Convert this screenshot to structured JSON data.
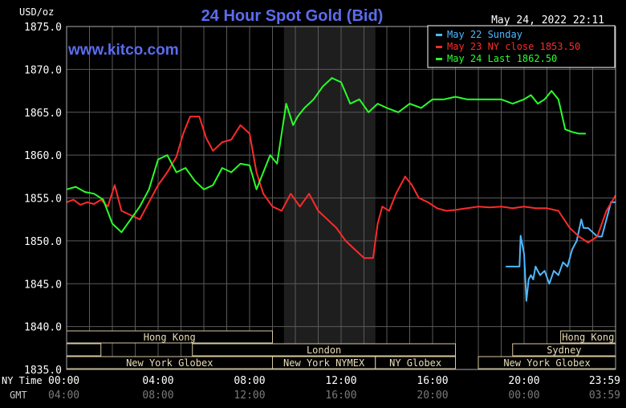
{
  "chart_data": {
    "type": "line",
    "title": "24 Hour Spot Gold (Bid)",
    "ylabel": "USD/oz",
    "timestamp": "May 24, 2022 22:11",
    "watermark": "www.kitco.com",
    "ylim": [
      1835,
      1875
    ],
    "y_ticks": [
      "1875.0",
      "1870.0",
      "1865.0",
      "1860.0",
      "1855.0",
      "1850.0",
      "1845.0",
      "1840.0",
      "1835.0"
    ],
    "xlim": [
      0,
      24
    ],
    "x_ticks_ny": [
      "00:00",
      "04:00",
      "08:00",
      "12:00",
      "16:00",
      "20:00",
      "23:59"
    ],
    "x_ticks_gmt": [
      "04:00",
      "08:00",
      "12:00",
      "16:00",
      "20:00",
      "00:00",
      "03:59"
    ],
    "x_axis_labels": {
      "ny": "NY Time",
      "gmt": "GMT"
    },
    "grid": true,
    "legend_position": "top-right",
    "legend": [
      {
        "label": "May 22 Sunday",
        "color": "#4fb8ff"
      },
      {
        "label": "May 23 NY close 1853.50",
        "color": "#ff2a2a"
      },
      {
        "label": "May 24 Last 1862.50",
        "color": "#29ff29"
      }
    ],
    "shaded_region_hours": [
      9.5,
      13.5
    ],
    "series": [
      {
        "name": "May 22 Sunday",
        "color": "#4fb8ff",
        "x": [
          19.2,
          19.8,
          19.85,
          20.0,
          20.1,
          20.2,
          20.3,
          20.4,
          20.5,
          20.7,
          20.9,
          21.1,
          21.3,
          21.5,
          21.7,
          21.9,
          22.1,
          22.3,
          22.5,
          22.6,
          22.8,
          23.0,
          23.2,
          23.4,
          23.6,
          23.8,
          24.0
        ],
        "y": [
          1847.0,
          1847.0,
          1850.6,
          1848.5,
          1843.0,
          1845.5,
          1846.0,
          1845.5,
          1847.0,
          1846.0,
          1846.5,
          1845.0,
          1846.5,
          1846.0,
          1847.5,
          1847.0,
          1849.0,
          1850.0,
          1852.5,
          1851.5,
          1851.5,
          1851.0,
          1850.5,
          1850.5,
          1852.5,
          1854.5,
          1854.5
        ]
      },
      {
        "name": "May 23 NY close 1853.50",
        "color": "#ff2a2a",
        "x": [
          0,
          0.3,
          0.6,
          0.9,
          1.2,
          1.5,
          1.8,
          2.1,
          2.4,
          2.8,
          3.2,
          3.6,
          4.0,
          4.4,
          4.8,
          5.1,
          5.4,
          5.8,
          6.1,
          6.4,
          6.8,
          7.2,
          7.6,
          8.0,
          8.3,
          8.6,
          9.0,
          9.4,
          9.8,
          10.2,
          10.6,
          11.0,
          11.4,
          11.8,
          12.2,
          12.6,
          13.0,
          13.4,
          13.6,
          13.8,
          14.1,
          14.4,
          14.8,
          15.1,
          15.4,
          15.8,
          16.2,
          16.6,
          17.0,
          17.5,
          18.0,
          18.5,
          19.0,
          19.5,
          20.0,
          20.5,
          21.0,
          21.5,
          22.0,
          22.4,
          22.8,
          23.2,
          23.6,
          24.0
        ],
        "y": [
          1854.5,
          1854.8,
          1854.2,
          1854.5,
          1854.3,
          1854.8,
          1854.0,
          1856.5,
          1853.5,
          1853.0,
          1852.5,
          1854.5,
          1856.5,
          1858.0,
          1859.8,
          1862.5,
          1864.5,
          1864.5,
          1862.0,
          1860.5,
          1861.5,
          1861.8,
          1863.5,
          1862.5,
          1858.0,
          1855.5,
          1854.0,
          1853.5,
          1855.5,
          1854.0,
          1855.5,
          1853.5,
          1852.5,
          1851.5,
          1850.0,
          1849.0,
          1848.0,
          1848.0,
          1852.0,
          1854.0,
          1853.5,
          1855.5,
          1857.5,
          1856.5,
          1855.0,
          1854.5,
          1853.8,
          1853.5,
          1853.6,
          1853.8,
          1854.0,
          1853.9,
          1854.0,
          1853.8,
          1854.0,
          1853.8,
          1853.8,
          1853.5,
          1851.5,
          1850.5,
          1849.8,
          1850.5,
          1853.5,
          1855.3
        ]
      },
      {
        "name": "May 24 Last 1862.50",
        "color": "#29ff29",
        "x": [
          0,
          0.4,
          0.8,
          1.2,
          1.6,
          2.0,
          2.4,
          2.8,
          3.2,
          3.6,
          4.0,
          4.4,
          4.8,
          5.2,
          5.6,
          6.0,
          6.4,
          6.8,
          7.2,
          7.6,
          8.0,
          8.3,
          8.6,
          8.9,
          9.2,
          9.6,
          9.9,
          10.1,
          10.4,
          10.8,
          11.2,
          11.6,
          12.0,
          12.4,
          12.8,
          13.2,
          13.6,
          14.0,
          14.5,
          15.0,
          15.5,
          16.0,
          16.5,
          17.0,
          17.5,
          18.0,
          18.5,
          19.0,
          19.5,
          20.0,
          20.3,
          20.6,
          20.9,
          21.2,
          21.5,
          21.8,
          22.1,
          22.4,
          22.7
        ],
        "y": [
          1856.0,
          1856.3,
          1855.7,
          1855.5,
          1854.8,
          1852.0,
          1851.0,
          1852.5,
          1854.0,
          1856.0,
          1859.5,
          1860.0,
          1858.0,
          1858.5,
          1857.0,
          1856.0,
          1856.5,
          1858.5,
          1858.0,
          1859.0,
          1858.8,
          1856.0,
          1858.0,
          1860.0,
          1859.0,
          1866.0,
          1863.5,
          1864.5,
          1865.5,
          1866.5,
          1868.0,
          1869.0,
          1868.5,
          1866.0,
          1866.5,
          1865.0,
          1866.0,
          1865.5,
          1865.0,
          1866.0,
          1865.5,
          1866.5,
          1866.5,
          1866.8,
          1866.5,
          1866.5,
          1866.5,
          1866.5,
          1866.0,
          1866.5,
          1867.0,
          1866.0,
          1866.5,
          1867.5,
          1866.5,
          1863.0,
          1862.7,
          1862.5,
          1862.5
        ]
      }
    ],
    "sessions": [
      {
        "label": "Hong Kong",
        "row": 0,
        "start": 0.0,
        "end": 9.0
      },
      {
        "label": "Hong Kong",
        "row": 0,
        "start": 21.6,
        "end": 24.0
      },
      {
        "label": "",
        "row": 1,
        "start": 0.0,
        "end": 1.5
      },
      {
        "label": "London",
        "row": 1,
        "start": 5.5,
        "end": 17.0
      },
      {
        "label": "Sydney",
        "row": 1,
        "start": 19.5,
        "end": 24.0
      },
      {
        "label": "New York Globex",
        "row": 2,
        "start": 0.0,
        "end": 9.0
      },
      {
        "label": "New York NYMEX",
        "row": 2,
        "start": 9.0,
        "end": 13.5
      },
      {
        "label": "NY Globex",
        "row": 2,
        "start": 13.5,
        "end": 17.0
      },
      {
        "label": "New York Globex",
        "row": 2,
        "start": 18.0,
        "end": 24.0
      }
    ]
  }
}
